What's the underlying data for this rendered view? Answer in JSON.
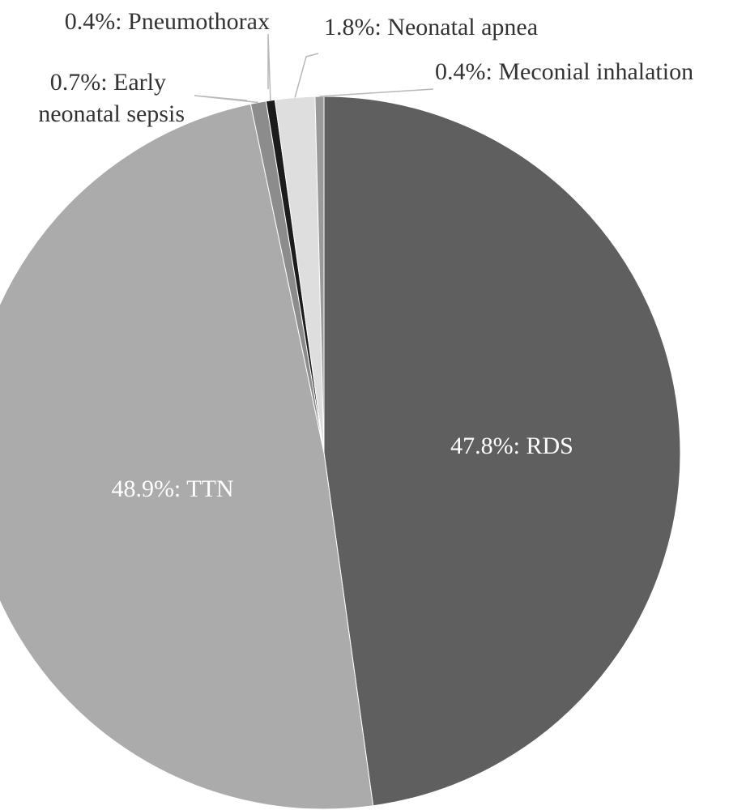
{
  "chart_data": {
    "type": "pie",
    "slices": [
      {
        "name": "RDS",
        "value": 47.8,
        "label": "47.8%: RDS",
        "color": "#5f5f5f"
      },
      {
        "name": "TTN",
        "value": 48.9,
        "label": "48.9%: TTN",
        "color": "#ababab"
      },
      {
        "name": "Early neonatal sepsis",
        "value": 0.7,
        "label_lines": [
          "0.7%: Early",
          "neonatal sepsis"
        ],
        "color": "#8c8c8c"
      },
      {
        "name": "Pneumothorax",
        "value": 0.4,
        "label": "0.4%: Pneumothorax",
        "color": "#1c1c1c"
      },
      {
        "name": "Neonatal apnea",
        "value": 1.8,
        "label": "1.8%: Neonatal apnea",
        "color": "#dedede"
      },
      {
        "name": "Meconial inhalation",
        "value": 0.4,
        "label": "0.4%: Meconial inhalation",
        "color": "#9a9a9a"
      }
    ],
    "start_angle_deg": 0,
    "direction": "clockwise",
    "legend": "none"
  }
}
